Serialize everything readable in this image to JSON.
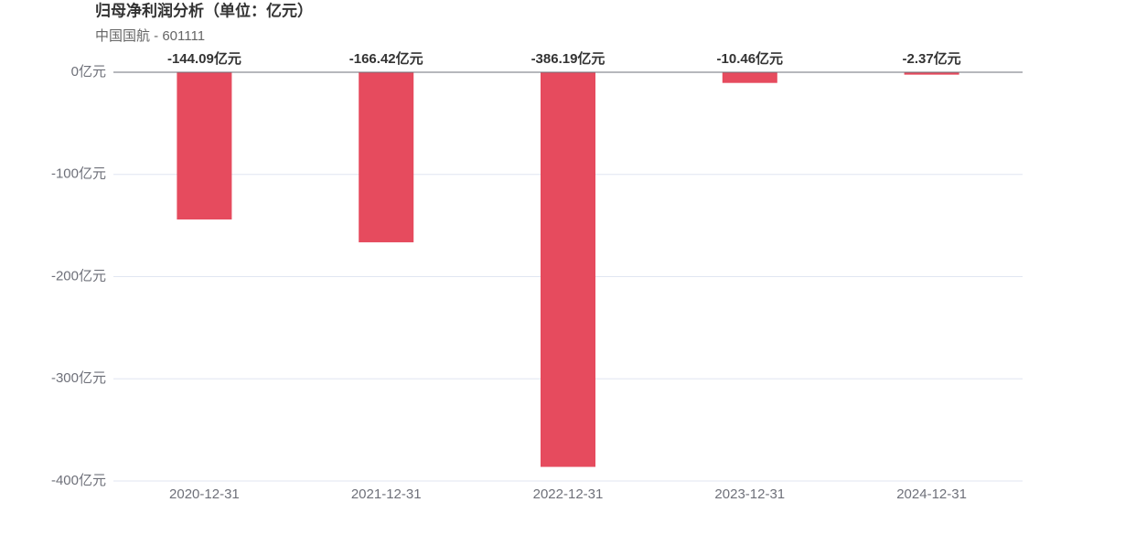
{
  "chart_data": {
    "type": "bar",
    "title": "归母净利润分析（单位：亿元）",
    "subtitle": "中国国航 - 601111",
    "categories": [
      "2020-12-31",
      "2021-12-31",
      "2022-12-31",
      "2023-12-31",
      "2024-12-31"
    ],
    "values": [
      -144.09,
      -166.42,
      -386.19,
      -10.46,
      -2.37
    ],
    "value_labels": [
      "-144.09亿元",
      "-166.42亿元",
      "-386.19亿元",
      "-10.46亿元",
      "-2.37亿元"
    ],
    "color": "#e64b5e",
    "ylim": [
      -400,
      0
    ],
    "yticks": [
      {
        "value": 0,
        "label": "0亿元"
      },
      {
        "value": -100,
        "label": "-100亿元"
      },
      {
        "value": -200,
        "label": "-200亿元"
      },
      {
        "value": -300,
        "label": "-300亿元"
      },
      {
        "value": -400,
        "label": "-400亿元"
      }
    ],
    "grid": true
  }
}
